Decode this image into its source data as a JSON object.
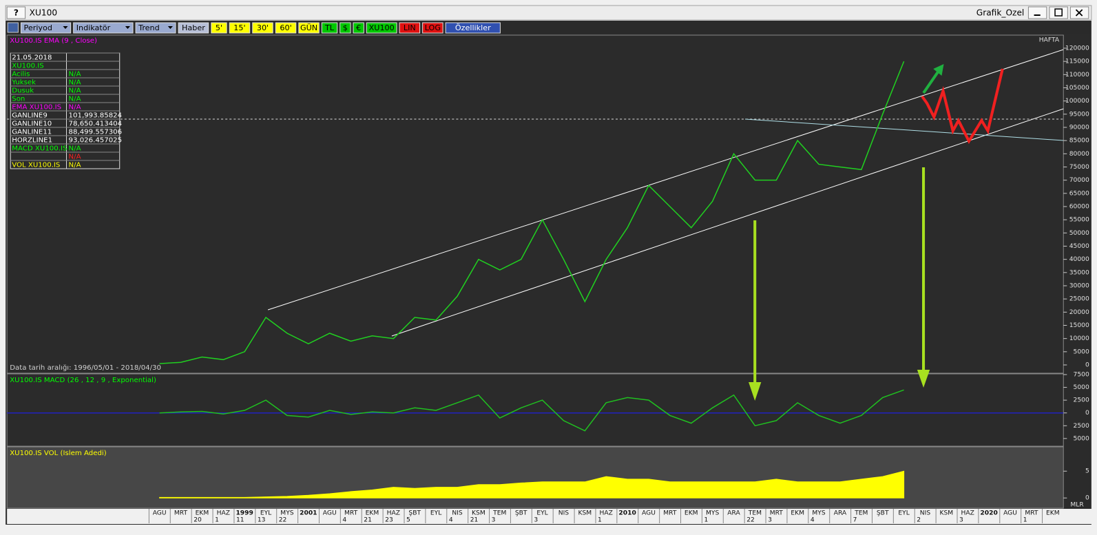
{
  "window": {
    "help": "?",
    "title": "XU100",
    "name": "Grafik_Ozel"
  },
  "toolbar": [
    {
      "label": "Periyod",
      "bg": "#9aaad0",
      "fg": "#000000"
    },
    {
      "label": "Indikatör",
      "bg": "#9aaad0",
      "fg": "#000000"
    },
    {
      "label": "Trend",
      "bg": "#9aaad0",
      "fg": "#000000"
    },
    {
      "label": "Haber",
      "bg": "#b8c0d8",
      "fg": "#000000"
    },
    {
      "label": "5'",
      "bg": "#ffff00",
      "fg": "#000000"
    },
    {
      "label": "15'",
      "bg": "#ffff00",
      "fg": "#000000"
    },
    {
      "label": "30'",
      "bg": "#ffff00",
      "fg": "#000000"
    },
    {
      "label": "60'",
      "bg": "#ffff00",
      "fg": "#000000"
    },
    {
      "label": "GÜN",
      "bg": "#ffff00",
      "fg": "#000000"
    },
    {
      "label": "TL",
      "bg": "#00c800",
      "fg": "#000000"
    },
    {
      "label": "$",
      "bg": "#00c800",
      "fg": "#000000"
    },
    {
      "label": "€",
      "bg": "#00c800",
      "fg": "#000000"
    },
    {
      "label": "XU100",
      "bg": "#00c800",
      "fg": "#000000"
    },
    {
      "label": "LIN",
      "bg": "#e01010",
      "fg": "#000000"
    },
    {
      "label": "LOG",
      "bg": "#e01010",
      "fg": "#000000"
    },
    {
      "label": "Özellikler",
      "bg": "#3050b0",
      "fg": "#ffffff"
    }
  ],
  "info_table": [
    {
      "label": "21.05.2018",
      "value": null,
      "color": "#ffffff"
    },
    {
      "label": "XU100.IS",
      "value": null,
      "color": "#00ff00"
    },
    {
      "label": " Acilis",
      "value": "N/A",
      "color": "#00ff00"
    },
    {
      "label": " Yuksek",
      "value": "N/A",
      "color": "#00ff00"
    },
    {
      "label": " Dusuk",
      "value": "N/A",
      "color": "#00ff00"
    },
    {
      "label": " Son",
      "value": "N/A",
      "color": "#00ff00"
    },
    {
      "label": "EMA XU100.IS",
      "value": "N/A",
      "color": "#ff00ff"
    },
    {
      "label": "GANLINE9",
      "value": "101,993.85824",
      "color": "#ffffff"
    },
    {
      "label": "GANLINE10",
      "value": "78,650.413404",
      "color": "#ffffff"
    },
    {
      "label": "GANLINE11",
      "value": "88,499.557306",
      "color": "#ffffff"
    },
    {
      "label": "HORZLINE1",
      "value": "93,026.457025",
      "color": "#ffffff"
    },
    {
      "label": "MACD XU100.IS",
      "value": "N/A",
      "color": "#00ff00"
    },
    {
      "label": null,
      "value": "N/A",
      "color": "#ff2020"
    },
    {
      "label": "VOL XU100.IS",
      "value": "N/A",
      "color": "#ffff00"
    }
  ],
  "chart_data": [
    {
      "type": "line",
      "title": "XU100.IS EMA (9 , Close)",
      "title_color": "#ff00ff",
      "corner_label": "HAFTA",
      "note": "Data tarih aralığı: 1996/05/01 - 2018/04/30",
      "ylim": [
        -3000,
        125000
      ],
      "yticks": [
        0,
        5000,
        10000,
        15000,
        20000,
        25000,
        30000,
        35000,
        40000,
        45000,
        50000,
        55000,
        60000,
        65000,
        70000,
        75000,
        80000,
        85000,
        90000,
        95000,
        100000,
        105000,
        110000,
        115000,
        120000
      ],
      "series": [
        {
          "color": "#20d020",
          "values": [
            500,
            1000,
            3000,
            2000,
            5000,
            18000,
            12000,
            8000,
            12000,
            9000,
            11000,
            10000,
            18000,
            17000,
            26000,
            40000,
            36000,
            40000,
            55000,
            40000,
            24000,
            40000,
            52000,
            68000,
            60000,
            52000,
            62000,
            80000,
            70000,
            70000,
            85000,
            76000,
            75000,
            74000,
            95000,
            115000,
            null,
            null,
            null,
            null,
            null,
            null,
            null
          ]
        }
      ]
    },
    {
      "type": "line",
      "title": "XU100.IS MACD (26 , 12 , 9 , Exponential)",
      "title_color": "#00ff00",
      "zero_line_color": "#2020c0",
      "ylim": [
        -6500,
        7500
      ],
      "yticks": [
        {
          "value": -5000,
          "label": "5000"
        },
        {
          "value": -2500,
          "label": "2500"
        },
        0,
        2500,
        5000,
        7500
      ],
      "series": [
        {
          "color": "#20c020",
          "values": [
            0,
            200,
            300,
            -200,
            500,
            2500,
            -500,
            -800,
            500,
            -300,
            200,
            0,
            1000,
            500,
            2000,
            3500,
            -1000,
            1000,
            2500,
            -1500,
            -3500,
            2000,
            3000,
            2500,
            -500,
            -2000,
            1000,
            3500,
            -2500,
            -1500,
            2000,
            -500,
            -2000,
            -500,
            3000,
            4500,
            null,
            null,
            null,
            null,
            null,
            null,
            null
          ]
        }
      ]
    },
    {
      "type": "area",
      "title": "XU100.IS VOL (Islem Adedi)",
      "title_color": "#ffff00",
      "unit_label": "MLR",
      "ylim": [
        -1.9,
        9.4
      ],
      "yticks": [
        0,
        5
      ],
      "categories": [
        "AGU",
        "MRT",
        "EKM",
        "HAZ",
        "1999",
        "EYL",
        "MYS",
        "2001",
        "AGU",
        "MRT",
        "EKM",
        "HAZ",
        "ŞBT",
        "EYL",
        "NIS",
        "KSM",
        "TEM",
        "ŞBT",
        "EYL",
        "NIS",
        "KSM",
        "HAZ",
        "2010",
        "AGU",
        "MRT",
        "EKM",
        "MYS",
        "ARA",
        "TEM",
        "MRT",
        "EKM",
        "MYS",
        "ARA",
        "TEM",
        "ŞBT",
        "EYL",
        "NIS",
        "KSM",
        "HAZ",
        "2020",
        "AGU",
        "MRT",
        "EKM"
      ],
      "category_sublabels": [
        null,
        null,
        "20",
        "1",
        "11",
        "13",
        "22",
        null,
        null,
        "4",
        "21",
        "23",
        "5",
        null,
        "4",
        "21",
        "3",
        null,
        "3",
        null,
        null,
        "1",
        null,
        null,
        null,
        null,
        "1",
        null,
        "22",
        "3",
        null,
        "4",
        null,
        "7",
        null,
        null,
        "2",
        null,
        "3",
        null,
        null,
        "1",
        null
      ],
      "series": [
        {
          "color": "#ffff00",
          "values": [
            0.1,
            0.1,
            0.1,
            0.1,
            0.1,
            0.2,
            0.3,
            0.5,
            0.8,
            1.2,
            1.5,
            2,
            1.8,
            2,
            2,
            2.5,
            2.5,
            2.8,
            3,
            3,
            3,
            4,
            3.5,
            3.5,
            3,
            3,
            3,
            3,
            3,
            3.5,
            3,
            3,
            3,
            3.5,
            4,
            5,
            null,
            null,
            null,
            null,
            null,
            null,
            null
          ]
        }
      ]
    }
  ]
}
